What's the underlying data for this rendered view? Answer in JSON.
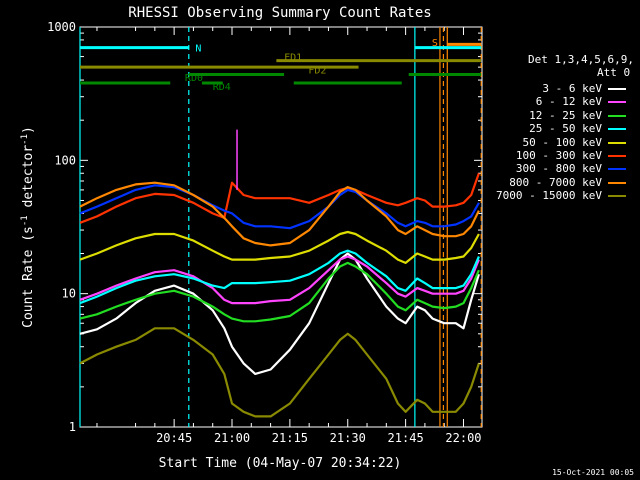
{
  "chart_data": {
    "type": "line",
    "title": "RHESSI Observing Summary Count Rates",
    "xlabel": "Start Time (04-May-07 20:34:22)",
    "ylabel": "Count Rate (s-1 detector-1)",
    "ylabel_parts": [
      "Count Rate (s",
      "-1",
      " detector",
      "-1",
      ")"
    ],
    "yscale": "log",
    "ylim": [
      1,
      1000
    ],
    "xlim_minutes": [
      20.6,
      124.8
    ],
    "x_ticks": [
      {
        "label": "20:45",
        "minutes": 45
      },
      {
        "label": "21:00",
        "minutes": 60
      },
      {
        "label": "21:15",
        "minutes": 75
      },
      {
        "label": "21:30",
        "minutes": 90
      },
      {
        "label": "21:45",
        "minutes": 105
      },
      {
        "label": "22:00",
        "minutes": 120
      }
    ],
    "y_ticks": [
      {
        "label": "1",
        "value": 1
      },
      {
        "label": "10",
        "value": 10
      },
      {
        "label": "100",
        "value": 100
      },
      {
        "label": "1000",
        "value": 1000
      }
    ],
    "legend_title": [
      "Det 1,3,4,5,6,9,",
      "Att 0"
    ],
    "series": [
      {
        "name": "3 - 6 keV",
        "color": "#ffffff",
        "x": [
          20.6,
          25,
          30,
          35,
          40,
          45,
          50,
          55,
          58,
          60,
          63,
          66,
          70,
          75,
          80,
          85,
          88,
          90,
          92,
          95,
          100,
          103,
          105,
          108,
          110,
          112,
          115,
          118,
          120,
          122,
          124
        ],
        "y": [
          5,
          5.4,
          6.5,
          8.5,
          10.5,
          11.5,
          10,
          7.5,
          5.5,
          4,
          3,
          2.5,
          2.7,
          3.8,
          6,
          12,
          18,
          20,
          18,
          13,
          8,
          6.5,
          6,
          8,
          7.5,
          6.5,
          6,
          6,
          5.5,
          9,
          14
        ]
      },
      {
        "name": "6 - 12 keV",
        "color": "#ff44ff",
        "x": [
          20.6,
          25,
          30,
          35,
          40,
          45,
          50,
          55,
          58,
          60,
          63,
          66,
          70,
          75,
          80,
          85,
          88,
          90,
          92,
          95,
          100,
          103,
          105,
          108,
          110,
          112,
          115,
          118,
          120,
          122,
          124
        ],
        "y": [
          9,
          10,
          11.5,
          13,
          14.5,
          15,
          13.5,
          11,
          9,
          8.5,
          8.5,
          8.5,
          8.8,
          9,
          11,
          15,
          18,
          19,
          18,
          16,
          12,
          10,
          9.5,
          11,
          10.5,
          10,
          10,
          10,
          10.5,
          13,
          18
        ]
      },
      {
        "name": "12 - 25 keV",
        "color": "#22dd22",
        "x": [
          20.6,
          25,
          30,
          35,
          40,
          45,
          50,
          55,
          58,
          60,
          63,
          66,
          70,
          75,
          80,
          85,
          88,
          90,
          92,
          95,
          100,
          103,
          105,
          108,
          110,
          112,
          115,
          118,
          120,
          122,
          124
        ],
        "y": [
          6.5,
          7,
          8,
          9,
          10,
          10.5,
          9.5,
          8,
          7,
          6.5,
          6.2,
          6.2,
          6.4,
          6.8,
          8.5,
          13,
          16,
          17,
          16,
          14,
          10,
          8,
          7.5,
          9,
          8.5,
          8,
          7.8,
          8,
          8.5,
          11,
          15
        ]
      },
      {
        "name": "25 - 50 keV",
        "color": "#00ffff",
        "x": [
          20.6,
          25,
          30,
          35,
          40,
          45,
          50,
          55,
          58,
          60,
          63,
          66,
          70,
          75,
          80,
          85,
          88,
          90,
          92,
          95,
          100,
          103,
          105,
          108,
          110,
          112,
          115,
          118,
          120,
          122,
          124
        ],
        "y": [
          8.5,
          9.5,
          11,
          12.5,
          13.5,
          14,
          13,
          11.5,
          11,
          12,
          12,
          12,
          12.2,
          12.5,
          14,
          17,
          20,
          21,
          20,
          17,
          13.5,
          11,
          10.5,
          13,
          12,
          11,
          11,
          11,
          11.5,
          14,
          19
        ]
      },
      {
        "name": "50 - 100 keV",
        "color": "#dddd00",
        "x": [
          20.6,
          25,
          30,
          35,
          40,
          45,
          50,
          55,
          58,
          60,
          63,
          66,
          70,
          75,
          80,
          85,
          88,
          90,
          92,
          95,
          100,
          103,
          105,
          108,
          110,
          112,
          115,
          118,
          120,
          122,
          124
        ],
        "y": [
          18,
          20,
          23,
          26,
          28,
          28,
          25,
          21,
          19,
          18,
          18,
          18,
          18.5,
          19,
          21,
          25,
          28,
          29,
          28,
          25,
          21,
          18,
          17,
          20,
          19,
          18,
          18,
          18.5,
          19,
          22,
          28
        ]
      },
      {
        "name": "100 - 300 keV",
        "color": "#ff3300",
        "x": [
          20.6,
          25,
          30,
          35,
          40,
          45,
          50,
          55,
          58,
          60,
          63,
          66,
          70,
          75,
          80,
          85,
          88,
          90,
          92,
          95,
          100,
          103,
          105,
          108,
          110,
          112,
          115,
          118,
          120,
          122,
          124
        ],
        "y": [
          34,
          38,
          45,
          52,
          56,
          55,
          48,
          40,
          37,
          68,
          55,
          52,
          52,
          52,
          48,
          55,
          60,
          62,
          60,
          55,
          48,
          46,
          48,
          52,
          50,
          45,
          45,
          46,
          48,
          55,
          80
        ]
      },
      {
        "name": "300 - 800 keV",
        "color": "#0033ff",
        "x": [
          20.6,
          25,
          30,
          35,
          40,
          45,
          50,
          55,
          58,
          60,
          63,
          66,
          70,
          75,
          80,
          85,
          88,
          90,
          92,
          95,
          100,
          103,
          105,
          108,
          110,
          112,
          115,
          118,
          120,
          122,
          124
        ],
        "y": [
          40,
          45,
          52,
          60,
          65,
          63,
          55,
          46,
          42,
          40,
          34,
          32,
          32,
          31,
          35,
          45,
          55,
          60,
          58,
          50,
          40,
          34,
          32,
          35,
          34,
          32,
          32,
          33,
          35,
          38,
          48
        ]
      },
      {
        "name": "800 - 7000 keV",
        "color": "#ff8800",
        "x": [
          20.6,
          25,
          30,
          35,
          40,
          45,
          50,
          55,
          58,
          60,
          63,
          66,
          70,
          75,
          80,
          85,
          88,
          90,
          92,
          95,
          100,
          103,
          105,
          108,
          110,
          112,
          115,
          118,
          120,
          122,
          124
        ],
        "y": [
          45,
          52,
          60,
          66,
          68,
          65,
          55,
          45,
          37,
          32,
          26,
          24,
          23,
          24,
          30,
          45,
          58,
          63,
          60,
          50,
          38,
          30,
          28,
          32,
          30,
          28,
          27,
          27,
          28,
          32,
          42
        ]
      },
      {
        "name": "7000 - 15000 keV",
        "color": "#8a8a00",
        "x": [
          20.6,
          25,
          30,
          35,
          40,
          45,
          50,
          55,
          58,
          60,
          63,
          66,
          70,
          75,
          80,
          85,
          88,
          90,
          92,
          95,
          100,
          103,
          105,
          108,
          110,
          112,
          115,
          118,
          120,
          122,
          124
        ],
        "y": [
          3,
          3.5,
          4,
          4.5,
          5.5,
          5.5,
          4.5,
          3.5,
          2.5,
          1.5,
          1.3,
          1.2,
          1.2,
          1.5,
          2.3,
          3.5,
          4.5,
          5,
          4.5,
          3.5,
          2.3,
          1.5,
          1.3,
          1.6,
          1.5,
          1.3,
          1.3,
          1.3,
          1.5,
          2,
          3
        ]
      }
    ],
    "spike": {
      "minutes": 61.3,
      "value": 170,
      "color": "#ff44ff"
    },
    "vlines": [
      {
        "minutes": 20.6,
        "value_top": 1000,
        "color": "#00ffff",
        "dash": false
      },
      {
        "minutes": 48.8,
        "value_top": 1000,
        "color": "#00ffff",
        "dash": true
      },
      {
        "minutes": 107.4,
        "value_top": 1000,
        "color": "#00ffff",
        "dash": false
      },
      {
        "minutes": 113.9,
        "value_top": 1000,
        "color": "#ff8800",
        "dash": false
      },
      {
        "minutes": 114.8,
        "value_top": 1000,
        "color": "#ff8800",
        "dash": true
      },
      {
        "minutes": 115.8,
        "value_top": 1000,
        "color": "#ff8800",
        "dash": false
      },
      {
        "minutes": 124.6,
        "value_top": 1000,
        "color": "#ff8800",
        "dash": true
      }
    ],
    "bars": [
      {
        "label": "N",
        "color": "#00ffff",
        "level": 700,
        "segments": [
          [
            20.6,
            48.8
          ],
          [
            107.4,
            124.6
          ]
        ],
        "label_at": 50.5,
        "label_level": 700
      },
      {
        "label": "S",
        "color": "#ff8800",
        "level": 740,
        "segments": [
          [
            115.8,
            124.6
          ]
        ],
        "label_at": 111.8,
        "label_level": 770
      },
      {
        "label": "FD1",
        "color": "#8a8a00",
        "level": 560,
        "segments": [
          [
            71.5,
            124.6
          ]
        ],
        "label_at": 73.5,
        "label_level": 600
      },
      {
        "label": "FD2",
        "color": "#8a8a00",
        "level": 500,
        "segments": [
          [
            20.6,
            92.8
          ]
        ],
        "label_at": 79.8,
        "label_level": 480
      },
      {
        "label": "RD0",
        "color": "#008800",
        "level": 440,
        "segments": [
          [
            48.8,
            73.5
          ],
          [
            105.8,
            124.6
          ]
        ],
        "label_at": 47.8,
        "label_level": 420
      },
      {
        "label": "RD4",
        "color": "#008800",
        "level": 380,
        "segments": [
          [
            20.6,
            44.0
          ],
          [
            52.2,
            57.6
          ],
          [
            76.0,
            104.0
          ]
        ],
        "label_at": 55.0,
        "label_level": 360
      }
    ]
  },
  "footer": {
    "stamp": "15-Oct-2021 00:05"
  }
}
